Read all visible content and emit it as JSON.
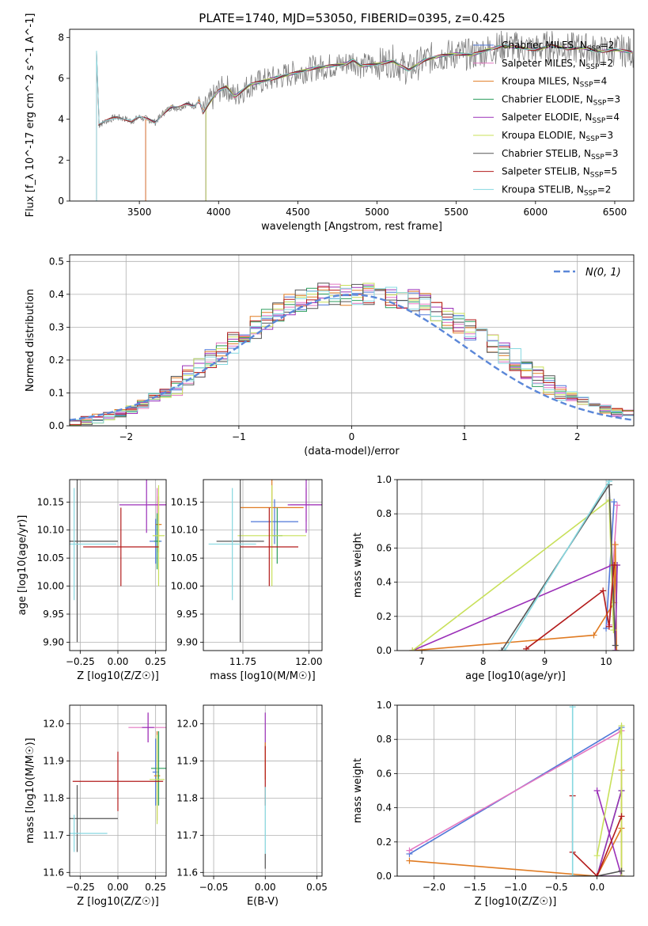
{
  "figure": {
    "suptitle": "PLATE=1740, MJD=53050, FIBERID=0395, z=0.425"
  },
  "colors": {
    "Chabrier MILES": "#4f77d8",
    "Salpeter MILES": "#e377c2",
    "Kroupa MILES": "#e07b22",
    "Chabrier ELODIE": "#2a9d5c",
    "Salpeter ELODIE": "#9b30b8",
    "Kroupa ELODIE": "#c8e05a",
    "Chabrier STELIB": "#555555",
    "Salpeter STELIB": "#b31b1b",
    "Kroupa STELIB": "#86d8e0",
    "data": "#808080",
    "gauss": "#5b87d8"
  },
  "chart_data": [
    {
      "id": "spectrum",
      "type": "line",
      "title": "PLATE=1740, MJD=53050, FIBERID=0395, z=0.425",
      "xlabel": "wavelength [Angstrom, rest frame]",
      "ylabel": "Flux [f_λ 10^-17 erg cm^-2 s^-1 A^-1]",
      "xlim": [
        3060,
        6620
      ],
      "ylim": [
        0,
        8.4
      ],
      "xticks": [
        3500,
        4000,
        4500,
        5000,
        5500,
        6000,
        6500
      ],
      "yticks": [
        0,
        2,
        4,
        6,
        8
      ],
      "data_flux_curve": {
        "x": [
          3240,
          3300,
          3350,
          3400,
          3450,
          3500,
          3550,
          3600,
          3650,
          3700,
          3750,
          3800,
          3850,
          3880,
          3900,
          3950,
          4000,
          4050,
          4100,
          4200,
          4300,
          4400,
          4500,
          4600,
          4700,
          4800,
          4850,
          4900,
          5000,
          5100,
          5150,
          5200,
          5300,
          5400,
          5500,
          5600,
          5700,
          5800,
          5900,
          6000,
          6100,
          6200,
          6300,
          6400,
          6500,
          6600
        ],
        "y": [
          3.7,
          3.95,
          4.1,
          4.05,
          3.9,
          4.1,
          4.0,
          3.85,
          4.3,
          4.6,
          4.55,
          4.75,
          4.65,
          5.0,
          4.3,
          4.9,
          5.4,
          5.6,
          5.1,
          5.7,
          5.9,
          6.1,
          6.3,
          6.5,
          6.6,
          6.7,
          6.9,
          6.6,
          6.7,
          6.85,
          6.6,
          6.4,
          6.9,
          7.1,
          7.2,
          7.15,
          7.4,
          7.6,
          7.5,
          7.4,
          7.6,
          7.45,
          7.5,
          7.3,
          7.4,
          7.3
        ]
      },
      "series": [
        {
          "name": "Chabrier MILES",
          "nssp": "2",
          "x_start": 3540
        },
        {
          "name": "Salpeter MILES",
          "nssp": "2",
          "x_start": 3540
        },
        {
          "name": "Kroupa MILES",
          "nssp": "4",
          "x_start": 3540
        },
        {
          "name": "Chabrier ELODIE",
          "nssp": "3",
          "x_start": 3920
        },
        {
          "name": "Salpeter ELODIE",
          "nssp": "4",
          "x_start": 3920
        },
        {
          "name": "Kroupa ELODIE",
          "nssp": "3",
          "x_start": 3920
        },
        {
          "name": "Chabrier STELIB",
          "nssp": "3",
          "x_start": 3230
        },
        {
          "name": "Salpeter STELIB",
          "nssp": "5",
          "x_start": 3230
        },
        {
          "name": "Kroupa STELIB",
          "nssp": "2",
          "x_start": 3230
        }
      ],
      "legend_position": "upper-right"
    },
    {
      "id": "residuals",
      "type": "line",
      "xlabel": "(data-model)/error",
      "ylabel": "Normed distribution",
      "xlim": [
        -2.5,
        2.5
      ],
      "ylim": [
        0,
        0.52
      ],
      "xticks": [
        -2,
        -1,
        0,
        1,
        2
      ],
      "yticks": [
        0.0,
        0.1,
        0.2,
        0.3,
        0.4,
        0.5
      ],
      "gauss_label": "N(0, 1)",
      "hist_x": [
        -2.5,
        -2.4,
        -2.3,
        -2.2,
        -2.1,
        -2.0,
        -1.9,
        -1.8,
        -1.7,
        -1.6,
        -1.5,
        -1.4,
        -1.3,
        -1.2,
        -1.1,
        -1.0,
        -0.9,
        -0.8,
        -0.7,
        -0.6,
        -0.5,
        -0.4,
        -0.3,
        -0.2,
        -0.1,
        0.0,
        0.1,
        0.2,
        0.3,
        0.4,
        0.5,
        0.6,
        0.7,
        0.8,
        0.9,
        1.0,
        1.1,
        1.2,
        1.3,
        1.4,
        1.5,
        1.6,
        1.7,
        1.8,
        1.9,
        2.0,
        2.1,
        2.2,
        2.3,
        2.4
      ],
      "hist_base": [
        0.01,
        0.015,
        0.022,
        0.03,
        0.04,
        0.05,
        0.065,
        0.085,
        0.1,
        0.12,
        0.15,
        0.18,
        0.2,
        0.22,
        0.25,
        0.28,
        0.3,
        0.32,
        0.35,
        0.37,
        0.38,
        0.39,
        0.4,
        0.4,
        0.4,
        0.4,
        0.4,
        0.4,
        0.39,
        0.39,
        0.38,
        0.37,
        0.35,
        0.33,
        0.31,
        0.29,
        0.27,
        0.25,
        0.22,
        0.2,
        0.17,
        0.15,
        0.13,
        0.11,
        0.09,
        0.075,
        0.06,
        0.05,
        0.04,
        0.035
      ],
      "legend_position": "upper-right"
    },
    {
      "id": "age_vs_Z",
      "type": "scatter",
      "xlabel": "Z [log10(Z/Z☉)]",
      "ylabel": "age  [log10(age/yr)]",
      "xlim": [
        -0.32,
        0.32
      ],
      "ylim": [
        9.885,
        10.19
      ],
      "xticks": [
        -0.25,
        0.0,
        0.25
      ],
      "yticks": [
        9.9,
        9.95,
        10.0,
        10.05,
        10.1,
        10.15
      ],
      "points": [
        {
          "series": "Chabrier MILES",
          "x": 0.25,
          "y": 10.08,
          "xerr": 0.04,
          "yerr": 0.04
        },
        {
          "series": "Salpeter MILES",
          "x": 0.26,
          "y": 10.145,
          "xerr": 0.06,
          "yerr": 0.03
        },
        {
          "series": "Kroupa MILES",
          "x": 0.27,
          "y": 10.11,
          "xerr": 0.02,
          "yerr": 0.05
        },
        {
          "series": "Chabrier ELODIE",
          "x": 0.26,
          "y": 10.08,
          "xerr": 0.02,
          "yerr": 0.05
        },
        {
          "series": "Salpeter ELODIE",
          "x": 0.19,
          "y": 10.145,
          "xerr": 0.18,
          "yerr": 0.05
        },
        {
          "series": "Kroupa ELODIE",
          "x": 0.27,
          "y": 10.09,
          "xerr": 0.04,
          "yerr": 0.09
        },
        {
          "series": "Chabrier STELIB",
          "x": -0.27,
          "y": 10.08,
          "xerr": 0.27,
          "yerr": 0.18
        },
        {
          "series": "Salpeter STELIB",
          "x": 0.02,
          "y": 10.07,
          "xerr": 0.25,
          "yerr": 0.07
        },
        {
          "series": "Kroupa STELIB",
          "x": -0.29,
          "y": 10.075,
          "xerr": 0.28,
          "yerr": 0.1
        }
      ]
    },
    {
      "id": "age_vs_mass",
      "type": "scatter",
      "xlabel": "mass [log10(M/M☉)]",
      "ylabel": "",
      "xlim": [
        11.6,
        12.05
      ],
      "ylim": [
        9.885,
        10.19
      ],
      "xticks": [
        11.75,
        12.0
      ],
      "yticks": [
        9.9,
        9.95,
        10.0,
        10.05,
        10.1,
        10.15
      ],
      "points": [
        {
          "series": "Chabrier MILES",
          "x": 11.87,
          "y": 10.115,
          "xerr": 0.09,
          "yerr": 0.04
        },
        {
          "series": "Salpeter MILES",
          "x": 11.99,
          "y": 10.145,
          "xerr": 0.06,
          "yerr": 0.03
        },
        {
          "series": "Kroupa MILES",
          "x": 11.86,
          "y": 10.14,
          "xerr": 0.12,
          "yerr": 0.05
        },
        {
          "series": "Chabrier ELODIE",
          "x": 11.88,
          "y": 10.09,
          "xerr": 0.02,
          "yerr": 0.05
        },
        {
          "series": "Salpeter ELODIE",
          "x": 11.99,
          "y": 10.145,
          "xerr": 0.07,
          "yerr": 0.05
        },
        {
          "series": "Kroupa ELODIE",
          "x": 11.86,
          "y": 10.09,
          "xerr": 0.13,
          "yerr": 0.09
        },
        {
          "series": "Chabrier STELIB",
          "x": 11.74,
          "y": 10.08,
          "xerr": 0.09,
          "yerr": 0.18
        },
        {
          "series": "Salpeter STELIB",
          "x": 11.85,
          "y": 10.07,
          "xerr": 0.11,
          "yerr": 0.07
        },
        {
          "series": "Kroupa STELIB",
          "x": 11.71,
          "y": 10.075,
          "xerr": 0.09,
          "yerr": 0.1
        }
      ]
    },
    {
      "id": "weight_vs_age",
      "type": "line",
      "xlabel": "age  [log10(age/yr)]",
      "ylabel": "mass weight",
      "xlim": [
        6.6,
        10.45
      ],
      "ylim": [
        0,
        1.0
      ],
      "xticks": [
        7,
        8,
        9,
        10
      ],
      "yticks": [
        0.0,
        0.2,
        0.4,
        0.6,
        0.8,
        1.0
      ],
      "series": [
        {
          "name": "Chabrier MILES",
          "x": [
            10.0,
            10.13
          ],
          "y": [
            0.13,
            0.87
          ]
        },
        {
          "name": "Salpeter MILES",
          "x": [
            10.05,
            10.18
          ],
          "y": [
            0.15,
            0.85
          ]
        },
        {
          "name": "Kroupa MILES",
          "x": [
            6.85,
            9.8,
            10.13,
            10.15,
            10.17
          ],
          "y": [
            0.0,
            0.09,
            0.28,
            0.62,
            0.0
          ]
        },
        {
          "name": "Chabrier ELODIE",
          "x": [
            10.15,
            10.18
          ],
          "y": [
            0.0,
            0.5
          ]
        },
        {
          "name": "Salpeter ELODIE",
          "x": [
            6.85,
            10.1,
            10.15,
            10.18
          ],
          "y": [
            0.0,
            0.5,
            0.0,
            0.5
          ]
        },
        {
          "name": "Kroupa ELODIE",
          "x": [
            6.85,
            10.05,
            10.12
          ],
          "y": [
            0.0,
            0.88,
            0.12
          ]
        },
        {
          "name": "Chabrier STELIB",
          "x": [
            8.3,
            10.05,
            10.15
          ],
          "y": [
            0.0,
            0.97,
            0.03
          ]
        },
        {
          "name": "Salpeter STELIB",
          "x": [
            8.7,
            9.95,
            10.05,
            10.13
          ],
          "y": [
            0.01,
            0.35,
            0.14,
            0.5
          ]
        },
        {
          "name": "Kroupa STELIB",
          "x": [
            8.35,
            10.05
          ],
          "y": [
            0.0,
            0.99
          ]
        }
      ]
    },
    {
      "id": "mass_vs_Z",
      "type": "scatter",
      "xlabel": "Z [log10(Z/Z☉)]",
      "ylabel": "mass [log10(M/M☉)]",
      "xlim": [
        -0.32,
        0.32
      ],
      "ylim": [
        11.59,
        12.05
      ],
      "xticks": [
        -0.25,
        0.0,
        0.25
      ],
      "yticks": [
        11.6,
        11.7,
        11.8,
        11.9,
        12.0
      ],
      "points": [
        {
          "series": "Chabrier MILES",
          "x": 0.25,
          "y": 11.87,
          "xerr": 0.02,
          "yerr": 0.09
        },
        {
          "series": "Salpeter MILES",
          "x": 0.2,
          "y": 11.99,
          "xerr": 0.13,
          "yerr": 0.04
        },
        {
          "series": "Kroupa MILES",
          "x": 0.26,
          "y": 11.86,
          "xerr": 0.02,
          "yerr": 0.12
        },
        {
          "series": "Chabrier ELODIE",
          "x": 0.27,
          "y": 11.88,
          "xerr": 0.05,
          "yerr": 0.1
        },
        {
          "series": "Salpeter ELODIE",
          "x": 0.2,
          "y": 11.99,
          "xerr": 0.04,
          "yerr": 0.04
        },
        {
          "series": "Kroupa ELODIE",
          "x": 0.26,
          "y": 11.85,
          "xerr": 0.05,
          "yerr": 0.12
        },
        {
          "series": "Chabrier STELIB",
          "x": -0.27,
          "y": 11.745,
          "xerr": 0.27,
          "yerr": 0.09
        },
        {
          "series": "Salpeter STELIB",
          "x": 0.0,
          "y": 11.845,
          "xerr": 0.3,
          "yerr": 0.08
        },
        {
          "series": "Kroupa STELIB",
          "x": -0.29,
          "y": 11.705,
          "xerr": 0.22,
          "yerr": 0.05
        }
      ]
    },
    {
      "id": "mass_vs_EBV",
      "type": "scatter",
      "xlabel": "E(B-V)",
      "ylabel": "",
      "xlim": [
        -0.06,
        0.055
      ],
      "ylim": [
        11.59,
        12.05
      ],
      "xticks": [
        -0.05,
        0.0,
        0.05
      ],
      "yticks": [
        11.6,
        11.7,
        11.8,
        11.9,
        12.0
      ],
      "points": [
        {
          "series": "Salpeter ELODIE",
          "x": 0.0,
          "y": 11.98,
          "yerr": 0.05
        },
        {
          "series": "Kroupa MILES",
          "x": 0.0,
          "y": 11.9,
          "yerr": 0.05
        },
        {
          "series": "Salpeter STELIB",
          "x": 0.0,
          "y": 11.86,
          "yerr": 0.08
        },
        {
          "series": "Kroupa STELIB",
          "x": 0.0,
          "y": 11.74,
          "yerr": 0.09
        },
        {
          "series": "Chabrier STELIB",
          "x": 0.0,
          "y": 11.63,
          "yerr": 0.02
        }
      ]
    },
    {
      "id": "weight_vs_Z",
      "type": "line",
      "xlabel": "Z [log10(Z/Z☉)]",
      "ylabel": "mass weight",
      "xlim": [
        -2.45,
        0.45
      ],
      "ylim": [
        0,
        1.0
      ],
      "xticks": [
        -2.0,
        -1.5,
        -1.0,
        -0.5,
        0.0
      ],
      "yticks": [
        0.0,
        0.2,
        0.4,
        0.6,
        0.8,
        1.0
      ],
      "series": [
        {
          "name": "Chabrier MILES",
          "x": [
            -2.3,
            0.3
          ],
          "y": [
            0.13,
            0.87
          ]
        },
        {
          "name": "Salpeter MILES",
          "x": [
            -2.3,
            0.3
          ],
          "y": [
            0.15,
            0.85
          ]
        },
        {
          "name": "Kroupa MILES",
          "x": [
            -2.3,
            0.0,
            0.3,
            0.3,
            0.3
          ],
          "y": [
            0.09,
            0.0,
            0.28,
            0.62,
            0.0
          ]
        },
        {
          "name": "Chabrier ELODIE",
          "x": [
            0.0,
            0.3
          ],
          "y": [
            0.0,
            0.5
          ]
        },
        {
          "name": "Salpeter ELODIE",
          "x": [
            0.0,
            0.3,
            0.0,
            0.3
          ],
          "y": [
            0.5,
            0.0,
            0.0,
            0.5
          ]
        },
        {
          "name": "Kroupa ELODIE",
          "x": [
            0.0,
            0.3,
            0.3
          ],
          "y": [
            0.12,
            0.88,
            0.0
          ]
        },
        {
          "name": "Chabrier STELIB",
          "x": [
            -0.3,
            0.0,
            0.3
          ],
          "y": [
            0.0,
            0.0,
            0.03
          ]
        },
        {
          "name": "Salpeter STELIB",
          "x": [
            -0.3,
            -0.3,
            0.0,
            0.3
          ],
          "y": [
            0.47,
            0.14,
            0.0,
            0.35
          ]
        },
        {
          "name": "Kroupa STELIB",
          "x": [
            -0.3,
            -0.3
          ],
          "y": [
            0.0,
            0.99
          ]
        }
      ]
    }
  ]
}
